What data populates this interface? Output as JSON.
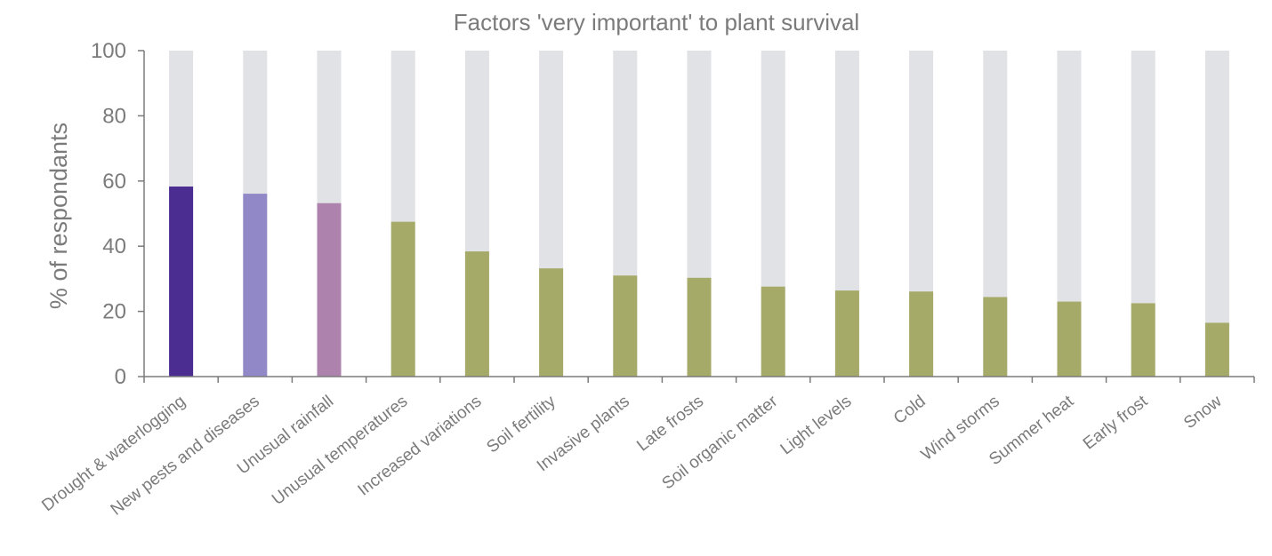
{
  "chart_data": {
    "type": "bar",
    "title": "Factors 'very important' to plant survival",
    "xlabel": "",
    "ylabel": "% of respondants",
    "ylim": [
      0,
      100
    ],
    "yticks": [
      "0",
      "20",
      "40",
      "60",
      "80",
      "100"
    ],
    "grid": false,
    "background_max": 100,
    "categories": [
      "Drought & waterlogging",
      "New pests and diseases",
      "Unusual rainfall",
      "Unusual temperatures",
      "Increased variations",
      "Soil fertility",
      "Invasive plants",
      "Late frosts",
      "Soil organic matter",
      "Light levels",
      "Cold",
      "Wind storms",
      "Summer heat",
      "Early frost",
      "Snow"
    ],
    "values": [
      58.3,
      56.1,
      53.2,
      47.5,
      38.4,
      33.2,
      31.0,
      30.3,
      27.6,
      26.4,
      26.1,
      24.4,
      23.0,
      22.5,
      16.5
    ],
    "colors": [
      "#4b2c91",
      "#9088c7",
      "#ad82ad",
      "#a6aa68",
      "#a6aa68",
      "#a6aa68",
      "#a6aa68",
      "#a6aa68",
      "#a6aa68",
      "#a6aa68",
      "#a6aa68",
      "#a6aa68",
      "#a6aa68",
      "#a6aa68",
      "#a6aa68"
    ],
    "background_color": "#e1e2e5"
  }
}
